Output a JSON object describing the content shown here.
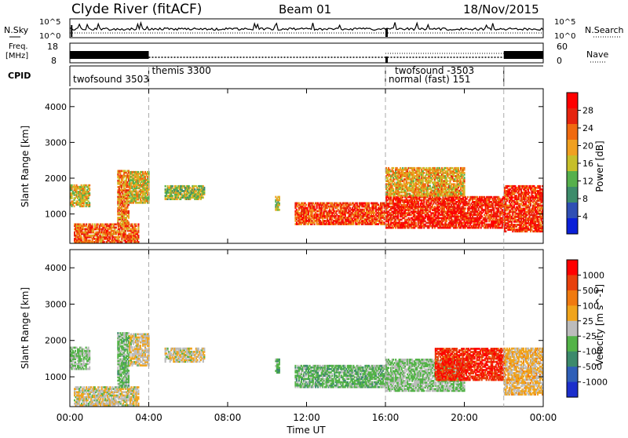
{
  "header": {
    "station": "Clyde River (fitACF)",
    "beam": "Beam 01",
    "date": "18/Nov/2015"
  },
  "nsky_panel": {
    "left_label": "N.Sky",
    "right_label": "N.Search",
    "left_ticks": [
      "10^5",
      "10^0"
    ],
    "right_ticks": [
      "10^5",
      "10^0"
    ]
  },
  "freq_panel": {
    "left_label_line1": "Freq.",
    "left_label_line2": "[MHz]",
    "right_label": "Nave",
    "left_ticks": [
      "18",
      "8"
    ],
    "right_ticks": [
      "60",
      "0"
    ]
  },
  "cpid_panel": {
    "label": "CPID",
    "modes": [
      {
        "name": "twofsound 3503",
        "start_hour": 0,
        "end_hour": 4
      },
      {
        "name": "themis 3300",
        "start_hour": 4,
        "end_hour": 16
      },
      {
        "name": "normal (fast) 151",
        "start_hour": 16,
        "end_hour": 22
      },
      {
        "name": "twofsound -3503",
        "start_hour": 16,
        "end_hour": 22
      }
    ]
  },
  "colors": {
    "power_scale": [
      "#0a1fd8",
      "#2f4fb4",
      "#3d8c6b",
      "#56b04c",
      "#c6bf2a",
      "#f0a020",
      "#f06a10",
      "#e6240e",
      "#ff0000"
    ],
    "velocity_scale": [
      "#1c2fcc",
      "#2f5fb8",
      "#3c8a6c",
      "#53b348",
      "#bcbcbc",
      "#f0a41c",
      "#f07a10",
      "#e8400c",
      "#ff0000"
    ]
  },
  "chart_data": [
    {
      "type": "heatmap",
      "panel": "power",
      "title": "",
      "xlabel": "Time UT",
      "ylabel": "Slant Range [km]",
      "xlim_hours": [
        0,
        24
      ],
      "ylim_km": [
        180,
        4500
      ],
      "x_ticks": [
        "00:00",
        "04:00",
        "08:00",
        "12:00",
        "16:00",
        "20:00",
        "00:00"
      ],
      "y_ticks": [
        1000,
        2000,
        3000,
        4000
      ],
      "colorbar": {
        "label": "Power [dB]",
        "ticks": [
          "28",
          "24",
          "20",
          "16",
          "12",
          "8",
          "4"
        ],
        "range": [
          0,
          30
        ]
      },
      "echo_regions": [
        {
          "t0": 0.2,
          "t1": 3.5,
          "r0": 200,
          "r1": 700,
          "value": 22
        },
        {
          "t0": 0.0,
          "t1": 1.0,
          "r0": 1200,
          "r1": 1800,
          "value": 16
        },
        {
          "t0": 2.4,
          "t1": 3.0,
          "r0": 700,
          "r1": 2200,
          "value": 20
        },
        {
          "t0": 3.0,
          "t1": 4.0,
          "r0": 1300,
          "r1": 2200,
          "value": 16
        },
        {
          "t0": 4.8,
          "t1": 6.8,
          "r0": 1400,
          "r1": 1800,
          "value": 14
        },
        {
          "t0": 10.4,
          "t1": 10.6,
          "r0": 1100,
          "r1": 1500,
          "value": 14
        },
        {
          "t0": 11.4,
          "t1": 16.0,
          "r0": 700,
          "r1": 1300,
          "value": 24
        },
        {
          "t0": 16.0,
          "t1": 22.0,
          "r0": 600,
          "r1": 1500,
          "value": 26
        },
        {
          "t0": 16.0,
          "t1": 20.0,
          "r0": 1500,
          "r1": 2300,
          "value": 18
        },
        {
          "t0": 22.0,
          "t1": 24.0,
          "r0": 500,
          "r1": 1800,
          "value": 25
        }
      ]
    },
    {
      "type": "heatmap",
      "panel": "velocity",
      "title": "",
      "xlabel": "Time UT",
      "ylabel": "Slant Range [km]",
      "xlim_hours": [
        0,
        24
      ],
      "ylim_km": [
        180,
        4500
      ],
      "x_ticks": [
        "00:00",
        "04:00",
        "08:00",
        "12:00",
        "16:00",
        "20:00",
        "00:00"
      ],
      "y_ticks": [
        1000,
        2000,
        3000,
        4000
      ],
      "colorbar": {
        "label": "Velocity [m s^-1]",
        "ticks": [
          "1000",
          "500",
          "100",
          "25",
          "-25",
          "-100",
          "-500",
          "-1000"
        ],
        "range": [
          -1200,
          1200
        ]
      },
      "echo_regions": [
        {
          "t0": 0.2,
          "t1": 3.5,
          "r0": 200,
          "r1": 700,
          "value": 60
        },
        {
          "t0": 0.0,
          "t1": 1.0,
          "r0": 1200,
          "r1": 1800,
          "value": -150
        },
        {
          "t0": 2.4,
          "t1": 3.0,
          "r0": 700,
          "r1": 2200,
          "value": -200
        },
        {
          "t0": 3.0,
          "t1": 4.0,
          "r0": 1300,
          "r1": 2200,
          "value": 80
        },
        {
          "t0": 4.8,
          "t1": 6.8,
          "r0": 1400,
          "r1": 1800,
          "value": 60
        },
        {
          "t0": 10.4,
          "t1": 10.6,
          "r0": 1100,
          "r1": 1500,
          "value": -300
        },
        {
          "t0": 11.4,
          "t1": 16.0,
          "r0": 700,
          "r1": 1300,
          "value": -250
        },
        {
          "t0": 16.0,
          "t1": 20.0,
          "r0": 600,
          "r1": 1500,
          "value": -150
        },
        {
          "t0": 18.5,
          "t1": 22.0,
          "r0": 900,
          "r1": 1800,
          "value": 900
        },
        {
          "t0": 22.0,
          "t1": 24.0,
          "r0": 500,
          "r1": 1800,
          "value": 200
        }
      ]
    }
  ]
}
